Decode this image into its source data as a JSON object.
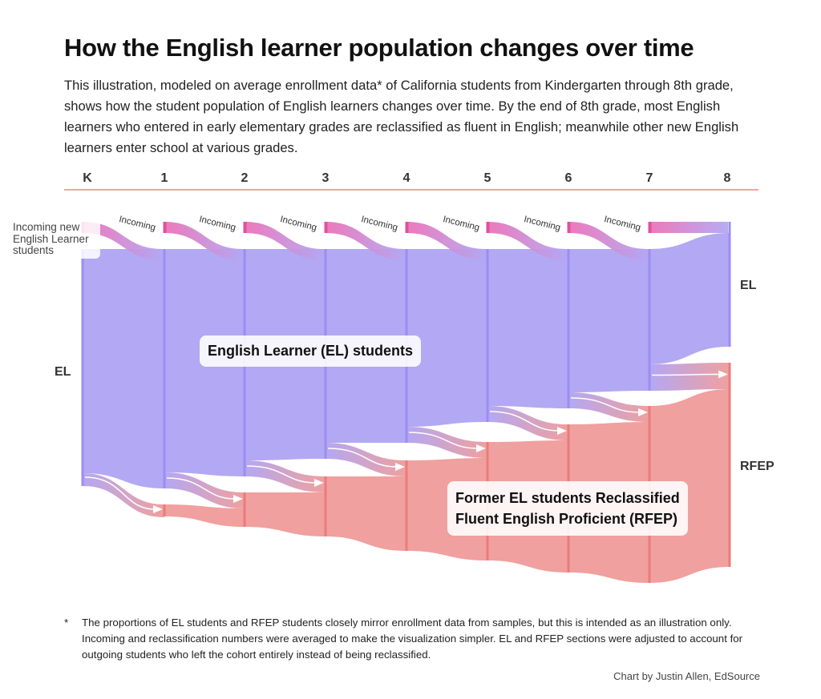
{
  "title": "How the English learner population changes over time",
  "description": "This illustration, modeled on average enrollment data* of California students from Kindergarten through 8th grade, shows how the student population of English learners changes over time. By the end of 8th grade, most English learners who entered in early elementary grades are reclassified as fluent in English; meanwhile other new English learners enter school at various grades.",
  "grades": [
    "K",
    "1",
    "2",
    "3",
    "4",
    "5",
    "6",
    "7",
    "8"
  ],
  "incoming_label": "Incoming",
  "incoming_new_label": "Incoming new English Learner students",
  "labels": {
    "el_left": "EL",
    "el_right": "EL",
    "rfep_right": "RFEP",
    "el_box": "English Learner (EL) students",
    "rfep_box_line1": "Former EL students Reclassified",
    "rfep_box_line2": "Fluent English Proficient (RFEP)"
  },
  "colors": {
    "el": "#b3a8f3",
    "el_node": "#9d8cf5",
    "rfep": "#f0a09e",
    "rfep_node": "#ea7b7d",
    "incoming": "#ec72b8",
    "rule": "#f2a3a3"
  },
  "footnote": {
    "marker": "*",
    "text": "The proportions of EL students and RFEP students closely mirror enrollment data from samples, but this is intended as an illustration only. Incoming and reclassification numbers were averaged to make the visualization simpler. EL and RFEP sections were adjusted to account for outgoing students who left the cohort entirely instead of being reclassified."
  },
  "credit": "Chart by Justin Allen, EdSource"
}
